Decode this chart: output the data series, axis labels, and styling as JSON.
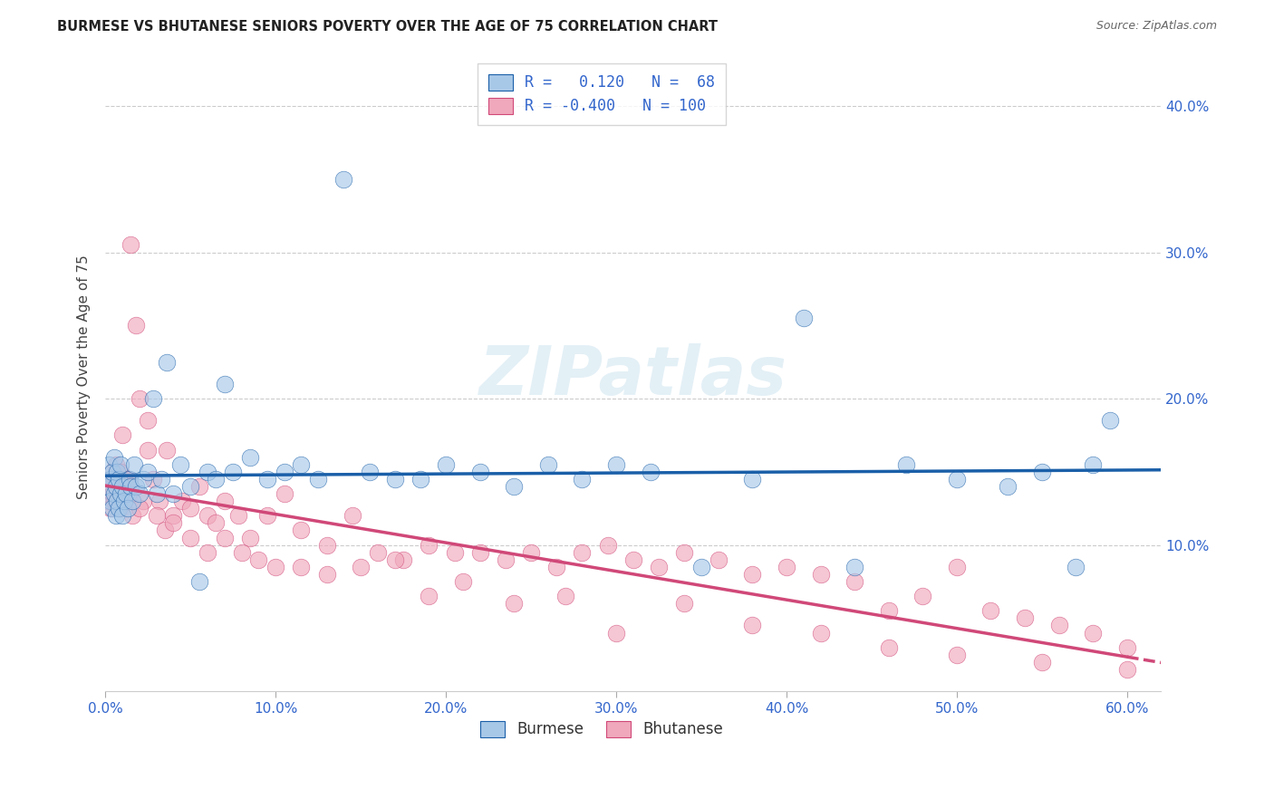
{
  "title": "BURMESE VS BHUTANESE SENIORS POVERTY OVER THE AGE OF 75 CORRELATION CHART",
  "source": "Source: ZipAtlas.com",
  "ylabel": "Seniors Poverty Over the Age of 75",
  "watermark": "ZIPatlas",
  "burmese_R": 0.12,
  "burmese_N": 68,
  "bhutanese_R": -0.4,
  "bhutanese_N": 100,
  "burmese_color": "#a8c8e8",
  "burmese_line_color": "#1a5fa8",
  "bhutanese_color": "#f0a8bc",
  "bhutanese_line_color": "#d04878",
  "background_color": "#ffffff",
  "grid_color": "#cccccc",
  "tick_color": "#3366cc",
  "ylabel_color": "#444444",
  "title_color": "#222222",
  "source_color": "#666666",
  "legend_edge_color": "#cccccc",
  "xlim": [
    0.0,
    0.62
  ],
  "ylim": [
    0.0,
    0.43
  ],
  "xtick_vals": [
    0.0,
    0.1,
    0.2,
    0.3,
    0.4,
    0.5,
    0.6
  ],
  "ytick_vals": [
    0.1,
    0.2,
    0.3,
    0.4
  ],
  "marker_size": 180,
  "marker_alpha": 0.65,
  "line_width": 2.5,
  "burmese_x": [
    0.001,
    0.002,
    0.003,
    0.003,
    0.004,
    0.004,
    0.005,
    0.005,
    0.006,
    0.006,
    0.007,
    0.007,
    0.008,
    0.008,
    0.009,
    0.009,
    0.01,
    0.01,
    0.011,
    0.012,
    0.013,
    0.014,
    0.015,
    0.016,
    0.017,
    0.018,
    0.02,
    0.022,
    0.025,
    0.028,
    0.03,
    0.033,
    0.036,
    0.04,
    0.044,
    0.05,
    0.055,
    0.06,
    0.065,
    0.07,
    0.075,
    0.085,
    0.095,
    0.105,
    0.115,
    0.125,
    0.14,
    0.155,
    0.17,
    0.185,
    0.2,
    0.22,
    0.24,
    0.26,
    0.28,
    0.3,
    0.32,
    0.35,
    0.38,
    0.41,
    0.44,
    0.47,
    0.5,
    0.53,
    0.55,
    0.57,
    0.58,
    0.59
  ],
  "burmese_y": [
    0.14,
    0.155,
    0.13,
    0.145,
    0.125,
    0.15,
    0.135,
    0.16,
    0.12,
    0.14,
    0.13,
    0.15,
    0.125,
    0.145,
    0.135,
    0.155,
    0.12,
    0.14,
    0.13,
    0.135,
    0.125,
    0.145,
    0.14,
    0.13,
    0.155,
    0.14,
    0.135,
    0.145,
    0.15,
    0.2,
    0.135,
    0.145,
    0.225,
    0.135,
    0.155,
    0.14,
    0.075,
    0.15,
    0.145,
    0.21,
    0.15,
    0.16,
    0.145,
    0.15,
    0.155,
    0.145,
    0.35,
    0.15,
    0.145,
    0.145,
    0.155,
    0.15,
    0.14,
    0.155,
    0.145,
    0.155,
    0.15,
    0.085,
    0.145,
    0.255,
    0.085,
    0.155,
    0.145,
    0.14,
    0.15,
    0.085,
    0.155,
    0.185
  ],
  "bhutanese_x": [
    0.001,
    0.002,
    0.003,
    0.004,
    0.004,
    0.005,
    0.005,
    0.006,
    0.006,
    0.007,
    0.007,
    0.008,
    0.008,
    0.009,
    0.009,
    0.01,
    0.01,
    0.011,
    0.011,
    0.012,
    0.013,
    0.014,
    0.015,
    0.016,
    0.018,
    0.02,
    0.022,
    0.025,
    0.028,
    0.032,
    0.036,
    0.04,
    0.045,
    0.05,
    0.055,
    0.06,
    0.065,
    0.07,
    0.078,
    0.085,
    0.095,
    0.105,
    0.115,
    0.13,
    0.145,
    0.16,
    0.175,
    0.19,
    0.205,
    0.22,
    0.235,
    0.25,
    0.265,
    0.28,
    0.295,
    0.31,
    0.325,
    0.34,
    0.36,
    0.38,
    0.4,
    0.42,
    0.44,
    0.46,
    0.48,
    0.5,
    0.52,
    0.54,
    0.56,
    0.58,
    0.6,
    0.01,
    0.015,
    0.02,
    0.025,
    0.03,
    0.035,
    0.04,
    0.05,
    0.06,
    0.07,
    0.08,
    0.09,
    0.1,
    0.115,
    0.13,
    0.15,
    0.17,
    0.19,
    0.21,
    0.24,
    0.27,
    0.3,
    0.34,
    0.38,
    0.42,
    0.46,
    0.5,
    0.55,
    0.6
  ],
  "bhutanese_y": [
    0.13,
    0.14,
    0.125,
    0.15,
    0.135,
    0.145,
    0.13,
    0.155,
    0.13,
    0.145,
    0.135,
    0.13,
    0.14,
    0.125,
    0.15,
    0.14,
    0.135,
    0.13,
    0.145,
    0.14,
    0.145,
    0.135,
    0.305,
    0.12,
    0.25,
    0.2,
    0.13,
    0.185,
    0.145,
    0.13,
    0.165,
    0.12,
    0.13,
    0.125,
    0.14,
    0.12,
    0.115,
    0.13,
    0.12,
    0.105,
    0.12,
    0.135,
    0.11,
    0.1,
    0.12,
    0.095,
    0.09,
    0.1,
    0.095,
    0.095,
    0.09,
    0.095,
    0.085,
    0.095,
    0.1,
    0.09,
    0.085,
    0.095,
    0.09,
    0.08,
    0.085,
    0.08,
    0.075,
    0.055,
    0.065,
    0.085,
    0.055,
    0.05,
    0.045,
    0.04,
    0.03,
    0.175,
    0.14,
    0.125,
    0.165,
    0.12,
    0.11,
    0.115,
    0.105,
    0.095,
    0.105,
    0.095,
    0.09,
    0.085,
    0.085,
    0.08,
    0.085,
    0.09,
    0.065,
    0.075,
    0.06,
    0.065,
    0.04,
    0.06,
    0.045,
    0.04,
    0.03,
    0.025,
    0.02,
    0.015
  ]
}
